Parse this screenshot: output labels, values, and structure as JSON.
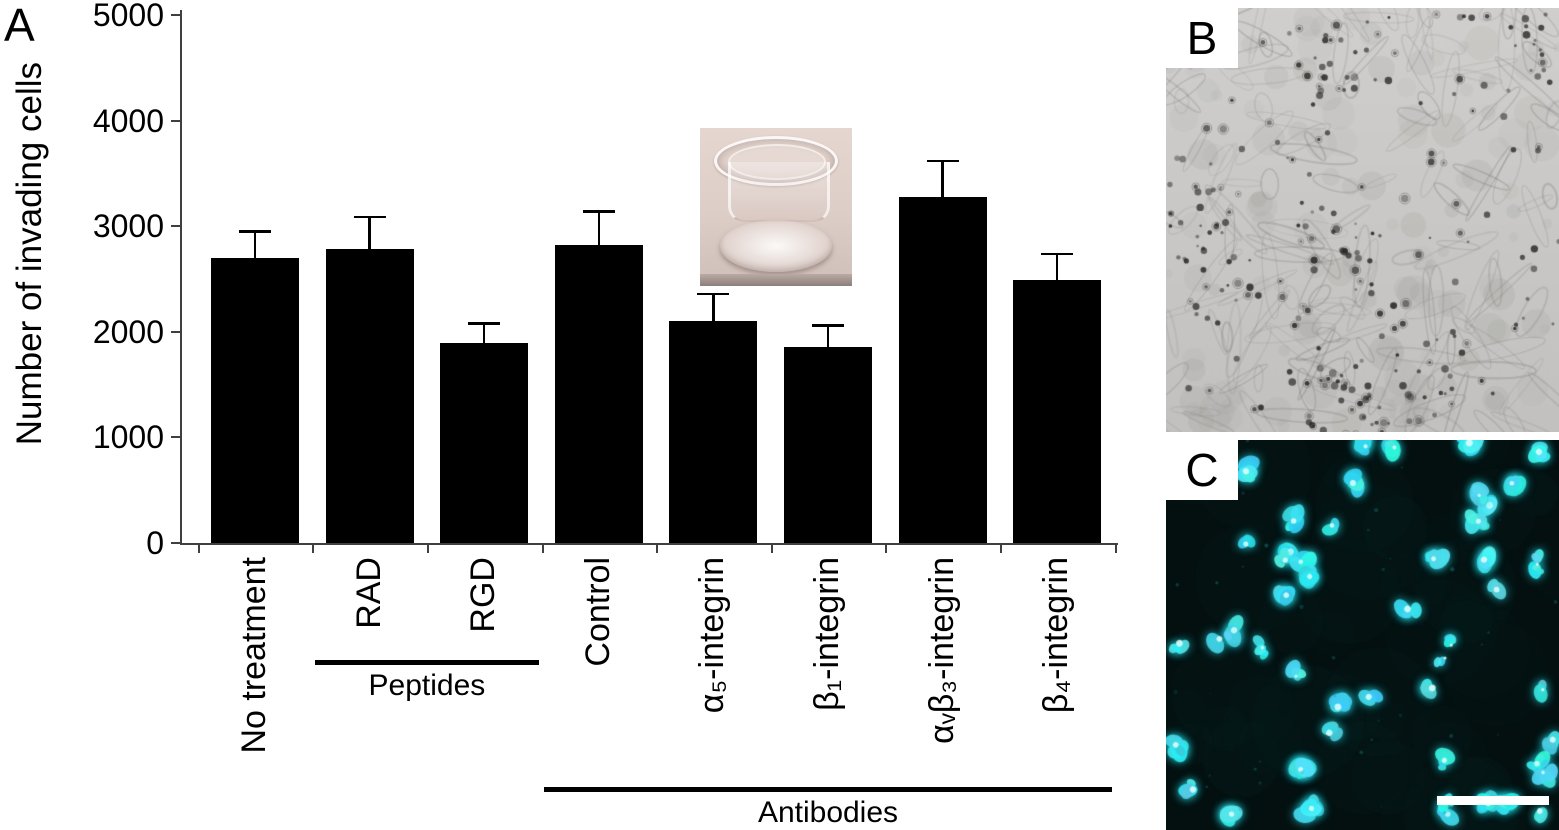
{
  "figure": {
    "panel_a": "A",
    "panel_b": "B",
    "panel_c": "C",
    "panel_c_has_scale_bar": true
  },
  "colors": {
    "bar": "#000000",
    "axis": "#3f3f3f",
    "text": "#000000",
    "fluorescence_cyan": "#2ee9f2",
    "micrograph_gray": "#c8c7c5",
    "background": "#ffffff"
  },
  "chart_data": {
    "type": "bar",
    "title": "",
    "xlabel": "",
    "ylabel": "Number of invading cells",
    "ylim": [
      0,
      5000
    ],
    "yticks": [
      0,
      1000,
      2000,
      3000,
      4000,
      5000
    ],
    "grid": false,
    "legend_position": "none",
    "categories": [
      "No treatment",
      "RAD",
      "RGD",
      "Control",
      "α₅-integrin",
      "β₁-integrin",
      "αᵥβ₃-integrin",
      "β₄-integrin"
    ],
    "values": [
      2700,
      2780,
      1890,
      2820,
      2100,
      1860,
      3280,
      2490
    ],
    "errors_upper": [
      250,
      310,
      190,
      320,
      260,
      200,
      340,
      250
    ],
    "groups": [
      {
        "label": "Peptides",
        "from": 1,
        "to": 2
      },
      {
        "label": "Antibodies",
        "from": 3,
        "to": 7
      }
    ]
  }
}
